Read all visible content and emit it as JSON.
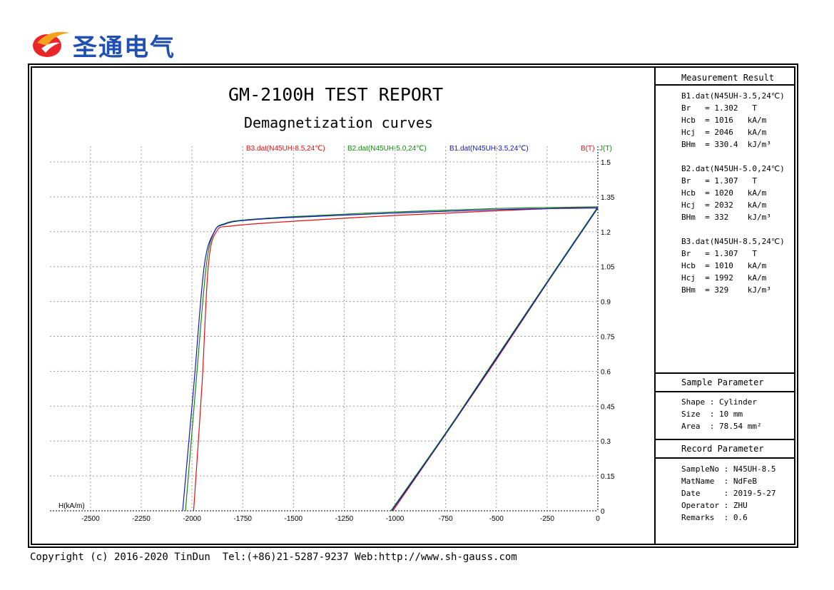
{
  "logo": {
    "text": "圣通电气"
  },
  "report": {
    "title": "GM-2100H TEST REPORT",
    "subtitle": "Demagnetization curves"
  },
  "chart_data": {
    "type": "line",
    "xlabel": "H(kA/m)",
    "ylabel_left": "B(T)",
    "ylabel_right": "J(T)",
    "xlim": [
      -2700,
      0
    ],
    "ylim": [
      0,
      1.5
    ],
    "x_ticks": [
      "-2500",
      "-2250",
      "-2000",
      "-1750",
      "-1500",
      "-1250",
      "-1000",
      "-750",
      "-500",
      "-250",
      "0"
    ],
    "y_ticks": [
      "1.5",
      "1.35",
      "1.2",
      "1.05",
      "0.9",
      "0.75",
      "0.6",
      "0.45",
      "0.3",
      "0.15",
      "0"
    ],
    "grid": true,
    "legend_position": "top",
    "series": [
      {
        "name": "B3.dat(N45UH-8.5,24℃)",
        "color": "#e01010",
        "J": {
          "x": [
            0,
            -500,
            -1000,
            -1500,
            -1800,
            -1880,
            -1920,
            -1950,
            -1992
          ],
          "y": [
            1.307,
            1.29,
            1.27,
            1.245,
            1.225,
            1.2,
            1.05,
            0.55,
            0
          ]
        },
        "B": {
          "x": [
            0,
            -250,
            -500,
            -750,
            -1010
          ],
          "y": [
            1.307,
            0.98,
            0.65,
            0.33,
            0
          ]
        }
      },
      {
        "name": "B2.dat(N45UH-5.0,24℃)",
        "color": "#118811",
        "J": {
          "x": [
            0,
            -500,
            -1000,
            -1500,
            -1750,
            -1840,
            -1890,
            -1930,
            -1980,
            -2032
          ],
          "y": [
            1.307,
            1.3,
            1.285,
            1.265,
            1.25,
            1.235,
            1.2,
            1.05,
            0.55,
            0
          ]
        },
        "B": {
          "x": [
            0,
            -250,
            -500,
            -750,
            -1020
          ],
          "y": [
            1.307,
            0.985,
            0.66,
            0.335,
            0
          ]
        }
      },
      {
        "name": "B1.dat(N45UH-3.5,24℃)",
        "color": "#1414c8",
        "J": {
          "x": [
            0,
            -500,
            -1000,
            -1500,
            -1750,
            -1840,
            -1890,
            -1940,
            -1990,
            -2046
          ],
          "y": [
            1.302,
            1.295,
            1.28,
            1.262,
            1.248,
            1.232,
            1.2,
            1.05,
            0.55,
            0
          ]
        },
        "B": {
          "x": [
            0,
            -250,
            -500,
            -750,
            -1016
          ],
          "y": [
            1.302,
            0.98,
            0.655,
            0.33,
            0
          ]
        }
      }
    ]
  },
  "measurement": {
    "header": "Measurement Result",
    "blocks": [
      {
        "file": "B1.dat(N45UH-3.5,24℃)",
        "lines": [
          "Br   = 1.302   T",
          "Hcb  = 1016   kA/m",
          "Hcj  = 2046   kA/m",
          "BHm  = 330.4  kJ/m³"
        ]
      },
      {
        "file": "B2.dat(N45UH-5.0,24℃)",
        "lines": [
          "Br   = 1.307   T",
          "Hcb  = 1020   kA/m",
          "Hcj  = 2032   kA/m",
          "BHm  = 332    kJ/m³"
        ]
      },
      {
        "file": "B3.dat(N45UH-8.5,24℃)",
        "lines": [
          "Br   = 1.307   T",
          "Hcb  = 1010   kA/m",
          "Hcj  = 1992   kA/m",
          "BHm  = 329    kJ/m³"
        ]
      }
    ]
  },
  "sample": {
    "header": "Sample Parameter",
    "lines": [
      "Shape : Cylinder",
      "Size  : 10 mm",
      "Area  : 78.54 mm²"
    ]
  },
  "record": {
    "header": "Record Parameter",
    "lines": [
      "SampleNo : N45UH-8.5",
      "MatName  : NdFeB",
      "Date     : 2019-5-27",
      "Operator : ZHU",
      "Remarks  : 0.6"
    ]
  },
  "footer": {
    "copyright": "Copyright (c) 2016-2020 TinDun  Tel:(+86)21-5287-9237 Web:http://www.sh-gauss.com"
  }
}
